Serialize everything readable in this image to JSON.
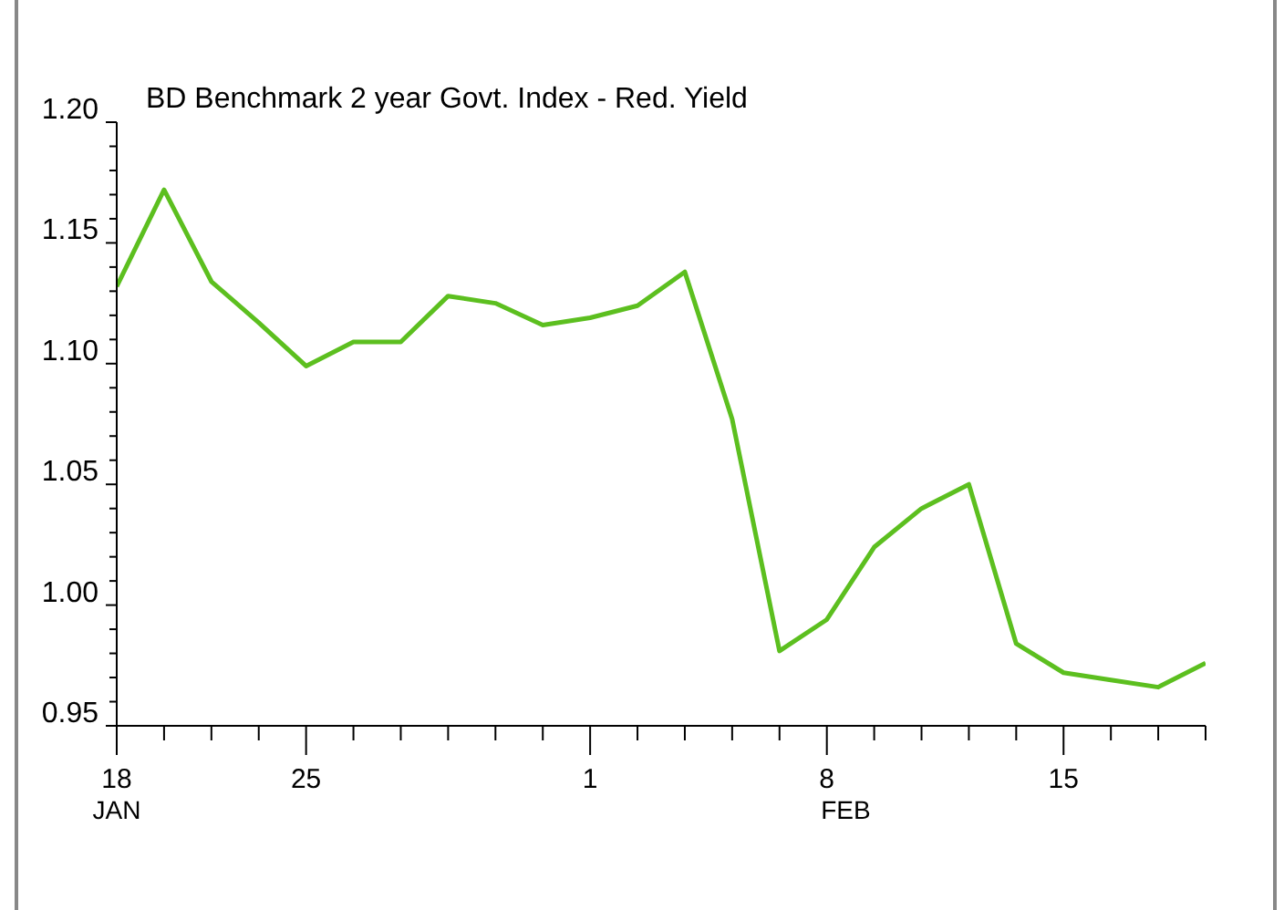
{
  "chart_data": {
    "type": "line",
    "title": "BD Benchmark 2 year Govt. Index - Red. Yield",
    "categories": [
      "18",
      null,
      null,
      null,
      "25",
      null,
      null,
      null,
      null,
      null,
      "1",
      null,
      null,
      null,
      null,
      "8",
      null,
      null,
      null,
      null,
      "15",
      null,
      null,
      null
    ],
    "series": [
      {
        "color": "#5cbf1f",
        "values": [
          1.132,
          1.172,
          1.134,
          1.117,
          1.099,
          1.109,
          1.109,
          1.128,
          1.125,
          1.116,
          1.119,
          1.124,
          1.138,
          1.077,
          0.981,
          0.994,
          1.024,
          1.04,
          1.05,
          0.984,
          0.972,
          0.969,
          0.966,
          0.976
        ]
      }
    ],
    "ylim": [
      0.95,
      1.2
    ],
    "yticks": [
      {
        "value": 0.95,
        "label": "0.95"
      },
      {
        "value": 0.96,
        "label": null
      },
      {
        "value": 0.97,
        "label": null
      },
      {
        "value": 0.98,
        "label": null
      },
      {
        "value": 0.99,
        "label": null
      },
      {
        "value": 1.0,
        "label": "1.00"
      },
      {
        "value": 1.01,
        "label": null
      },
      {
        "value": 1.02,
        "label": null
      },
      {
        "value": 1.03,
        "label": null
      },
      {
        "value": 1.04,
        "label": null
      },
      {
        "value": 1.05,
        "label": "1.05"
      },
      {
        "value": 1.06,
        "label": null
      },
      {
        "value": 1.07,
        "label": null
      },
      {
        "value": 1.08,
        "label": null
      },
      {
        "value": 1.09,
        "label": null
      },
      {
        "value": 1.1,
        "label": "1.10"
      },
      {
        "value": 1.11,
        "label": null
      },
      {
        "value": 1.12,
        "label": null
      },
      {
        "value": 1.13,
        "label": null
      },
      {
        "value": 1.14,
        "label": null
      },
      {
        "value": 1.15,
        "label": "1.15"
      },
      {
        "value": 1.16,
        "label": null
      },
      {
        "value": 1.17,
        "label": null
      },
      {
        "value": 1.18,
        "label": null
      },
      {
        "value": 1.19,
        "label": null
      },
      {
        "value": 1.2,
        "label": "1.20"
      }
    ],
    "annotations": [
      "JAN",
      "FEB"
    ],
    "grid": false,
    "legend": false,
    "marker": "none",
    "line_style": "solid"
  }
}
